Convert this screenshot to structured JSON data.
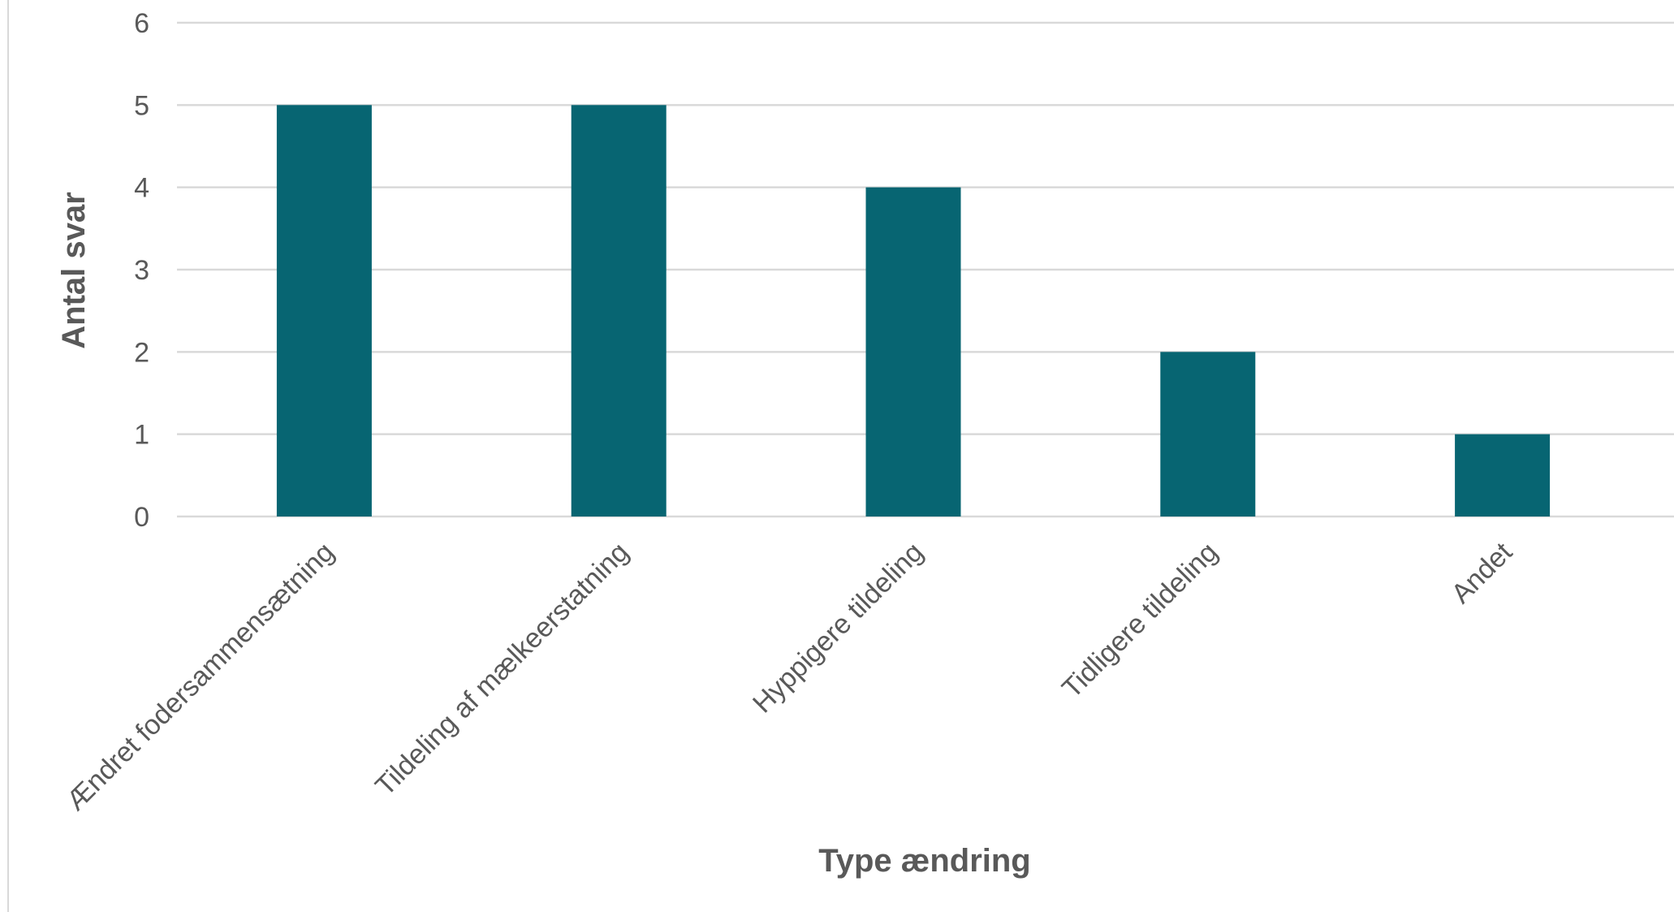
{
  "chart_data": {
    "type": "bar",
    "title": "",
    "xlabel": "Type ændring",
    "ylabel": "Antal svar",
    "categories": [
      "Ændret fodersammensætning",
      "Tildeling af mælkeerstatning",
      "Hyppigere tildeling",
      "Tidligere tildeling",
      "Andet"
    ],
    "values": [
      5,
      5,
      4,
      2,
      1
    ],
    "ylim": [
      0,
      6
    ],
    "yticks": [
      0,
      1,
      2,
      3,
      4,
      5,
      6
    ],
    "grid": true,
    "legend": "none",
    "bar_color": "#076572",
    "grid_color": "#d9d9d9",
    "text_color": "#595959"
  }
}
